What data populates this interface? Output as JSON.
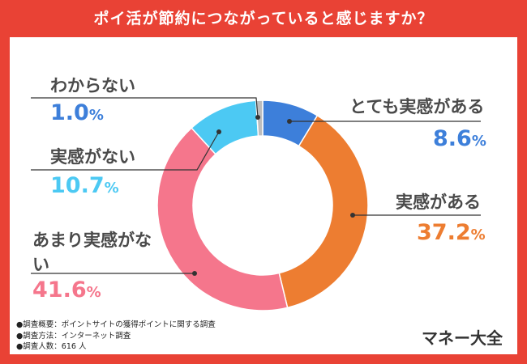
{
  "title": "ポイ活が節約につながっていると感じますか？",
  "brand": "マネー大全",
  "notes": [
    "●調査概要：ポイントサイトの獲得ポイントに関する調査",
    "●調査方法：インターネット調査",
    "●調査人数：616 人"
  ],
  "chart_data": {
    "type": "pie",
    "title": "ポイ活が節約につながっていると感じますか？",
    "donut": true,
    "unit": "%",
    "slices": [
      {
        "label": "とても実感がある",
        "value": 8.6,
        "display": "8.6",
        "color": "#3D7FDA"
      },
      {
        "label": "実感がある",
        "value": 37.2,
        "display": "37.2",
        "color": "#ED7D31"
      },
      {
        "label": "あまり実感がない",
        "value": 41.6,
        "display": "41.6",
        "color": "#F5768C"
      },
      {
        "label": "実感がない",
        "value": 10.7,
        "display": "10.7",
        "color": "#4CC9F3"
      },
      {
        "label": "わからない",
        "value": 1.0,
        "display": "1.0",
        "color": "#BDBDBD"
      }
    ]
  }
}
